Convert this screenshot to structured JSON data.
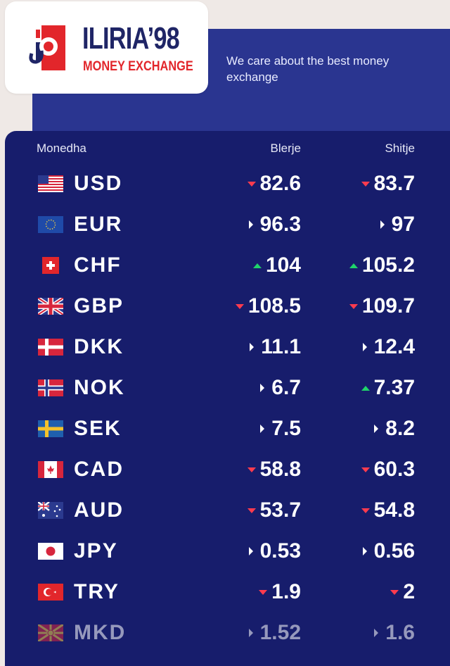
{
  "brand": {
    "name": "ILIRIA’98",
    "subtitle": "MONEY EXCHANGE",
    "tagline": "We care about the best money exchange",
    "colors": {
      "navy": "#1f2566",
      "red": "#e2262b",
      "board": "#171d6c",
      "hero": "#2a3590"
    }
  },
  "table": {
    "headers": {
      "currency": "Monedha",
      "buy": "Blerje",
      "sell": "Shitje"
    },
    "indicator_colors": {
      "down": "#ff3b4e",
      "up": "#1fd36a",
      "same": "#ffffff"
    },
    "rows": [
      {
        "code": "USD",
        "flag": "us-flag-icon",
        "buy": "82.6",
        "buy_trend": "down",
        "sell": "83.7",
        "sell_trend": "down"
      },
      {
        "code": "EUR",
        "flag": "eu-flag-icon",
        "buy": "96.3",
        "buy_trend": "same",
        "sell": "97",
        "sell_trend": "same"
      },
      {
        "code": "CHF",
        "flag": "ch-flag-icon",
        "buy": "104",
        "buy_trend": "up",
        "sell": "105.2",
        "sell_trend": "up"
      },
      {
        "code": "GBP",
        "flag": "gb-flag-icon",
        "buy": "108.5",
        "buy_trend": "down",
        "sell": "109.7",
        "sell_trend": "down"
      },
      {
        "code": "DKK",
        "flag": "dk-flag-icon",
        "buy": "11.1",
        "buy_trend": "same",
        "sell": "12.4",
        "sell_trend": "same"
      },
      {
        "code": "NOK",
        "flag": "no-flag-icon",
        "buy": "6.7",
        "buy_trend": "same",
        "sell": "7.37",
        "sell_trend": "up"
      },
      {
        "code": "SEK",
        "flag": "se-flag-icon",
        "buy": "7.5",
        "buy_trend": "same",
        "sell": "8.2",
        "sell_trend": "same"
      },
      {
        "code": "CAD",
        "flag": "ca-flag-icon",
        "buy": "58.8",
        "buy_trend": "down",
        "sell": "60.3",
        "sell_trend": "down"
      },
      {
        "code": "AUD",
        "flag": "au-flag-icon",
        "buy": "53.7",
        "buy_trend": "down",
        "sell": "54.8",
        "sell_trend": "down"
      },
      {
        "code": "JPY",
        "flag": "jp-flag-icon",
        "buy": "0.53",
        "buy_trend": "same",
        "sell": "0.56",
        "sell_trend": "same"
      },
      {
        "code": "TRY",
        "flag": "tr-flag-icon",
        "buy": "1.9",
        "buy_trend": "down",
        "sell": "2",
        "sell_trend": "down"
      },
      {
        "code": "MKD",
        "flag": "mk-flag-icon",
        "buy": "1.52",
        "buy_trend": "same",
        "sell": "1.6",
        "sell_trend": "same"
      }
    ]
  }
}
